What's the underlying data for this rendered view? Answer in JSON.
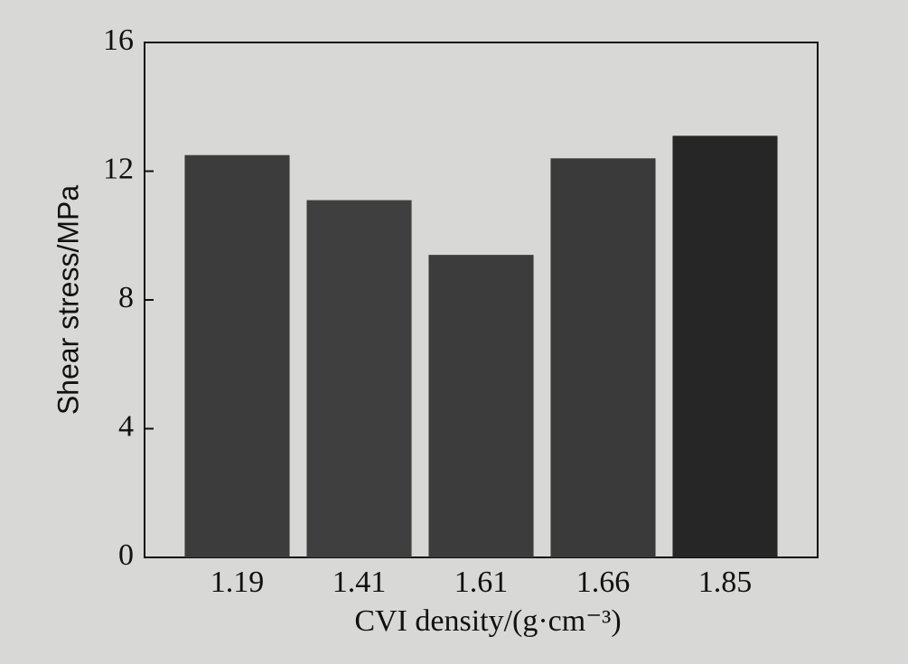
{
  "chart_data": {
    "type": "bar",
    "x_label": "CVI density/(g·cm⁻³)",
    "y_label": "Shear stress/MPa",
    "categories": [
      "1.19",
      "1.41",
      "1.61",
      "1.66",
      "1.85"
    ],
    "values": [
      12.5,
      11.1,
      9.4,
      12.4,
      13.1
    ],
    "colors": [
      "#3c3c3c",
      "#3f3f3f",
      "#3c3c3c",
      "#3a3a3a",
      "#262626"
    ],
    "ylim": [
      0,
      16
    ],
    "yticks": [
      0,
      4,
      8,
      12,
      16
    ],
    "grid": false
  }
}
